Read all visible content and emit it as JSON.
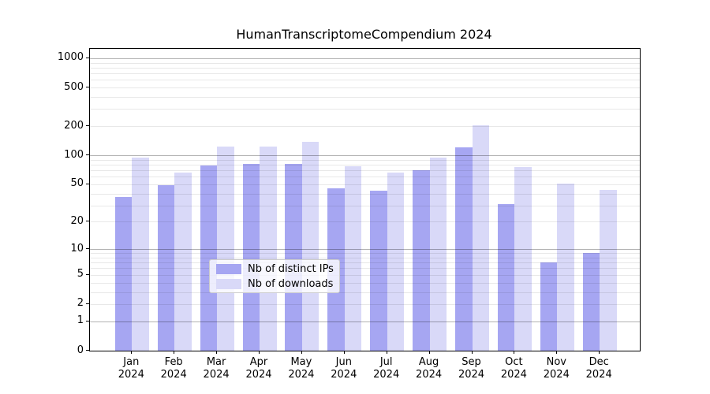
{
  "title": "HumanTranscriptomeCompendium 2024",
  "chart_data": {
    "type": "bar",
    "title": "HumanTranscriptomeCompendium 2024",
    "y_scale": "log10(value+1)",
    "categories": [
      "Jan",
      "Feb",
      "Mar",
      "Apr",
      "May",
      "Jun",
      "Jul",
      "Aug",
      "Sep",
      "Oct",
      "Nov",
      "Dec"
    ],
    "year_label": "2024",
    "series": [
      {
        "name": "Nb of distinct IPs",
        "color": "#a6a6f2",
        "values": [
          37,
          49,
          79,
          81,
          81,
          45,
          43,
          70,
          122,
          31,
          7,
          9
        ]
      },
      {
        "name": "Nb of downloads",
        "color": "#d9d9f8",
        "values": [
          94,
          66,
          124,
          124,
          138,
          77,
          66,
          94,
          206,
          75,
          51,
          44
        ]
      }
    ],
    "y_ticks": [
      0,
      1,
      2,
      5,
      10,
      20,
      50,
      100,
      200,
      500,
      1000
    ],
    "ylim": [
      0,
      1250
    ],
    "grid": {
      "major": [
        1,
        10,
        100,
        1000
      ],
      "minor": [
        2,
        3,
        4,
        5,
        6,
        7,
        8,
        9,
        20,
        30,
        40,
        50,
        60,
        70,
        80,
        90,
        200,
        300,
        400,
        500,
        600,
        700,
        800,
        900
      ]
    },
    "legend_position": "lower center"
  }
}
